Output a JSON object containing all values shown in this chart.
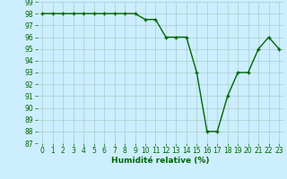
{
  "x": [
    0,
    1,
    2,
    3,
    4,
    5,
    6,
    7,
    8,
    9,
    10,
    11,
    12,
    13,
    14,
    15,
    16,
    17,
    18,
    19,
    20,
    21,
    22,
    23
  ],
  "y": [
    98,
    98,
    98,
    98,
    98,
    98,
    98,
    98,
    98,
    98,
    97.5,
    97.5,
    96,
    96,
    96,
    93,
    88,
    88,
    91,
    93,
    93,
    95,
    96,
    95
  ],
  "line_color": "#006600",
  "marker": "+",
  "marker_color": "#006600",
  "bg_color": "#cceeff",
  "grid_color": "#aacccc",
  "xlabel": "Humidité relative (%)",
  "xlabel_color": "#006600",
  "tick_color": "#006600",
  "ylim": [
    87,
    99
  ],
  "xlim": [
    -0.5,
    23.5
  ],
  "yticks": [
    87,
    88,
    89,
    90,
    91,
    92,
    93,
    94,
    95,
    96,
    97,
    98,
    99
  ],
  "xticks": [
    0,
    1,
    2,
    3,
    4,
    5,
    6,
    7,
    8,
    9,
    10,
    11,
    12,
    13,
    14,
    15,
    16,
    17,
    18,
    19,
    20,
    21,
    22,
    23
  ],
  "tick_fontsize": 5.5,
  "xlabel_fontsize": 6.5,
  "linewidth": 1.0,
  "markersize": 3.5
}
